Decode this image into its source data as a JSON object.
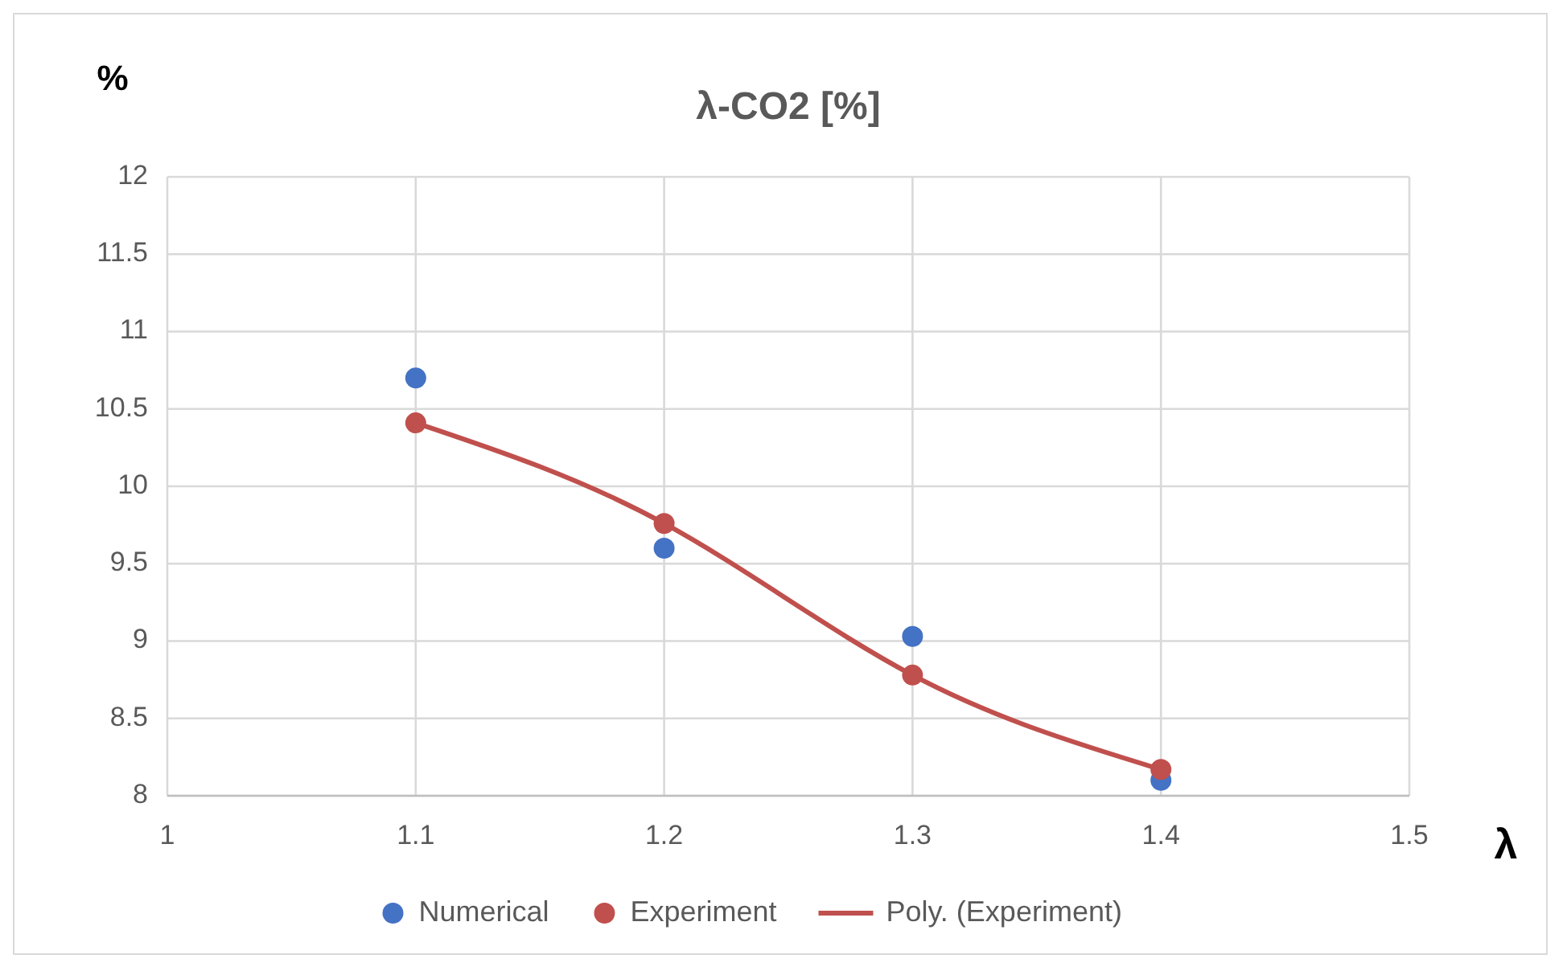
{
  "chart_data": {
    "type": "scatter",
    "title": "λ-CO2 [%]",
    "xlabel": "λ",
    "ylabel": "%",
    "xlim": [
      1,
      1.5
    ],
    "xticks": [
      1,
      1.1,
      1.2,
      1.3,
      1.4,
      1.5
    ],
    "ylim": [
      8,
      12
    ],
    "yticks": [
      8,
      8.5,
      9,
      9.5,
      10,
      10.5,
      11,
      11.5,
      12
    ],
    "grid": true,
    "legend": "bottom",
    "marker": "circle",
    "line_style": "solid",
    "x": [
      1.1,
      1.2,
      1.3,
      1.4
    ],
    "series": [
      {
        "name": "Numerical",
        "color": "#4472c4",
        "values": [
          10.7,
          9.6,
          9.03,
          8.1
        ]
      },
      {
        "name": "Experiment",
        "color": "#c0504d",
        "values": [
          10.41,
          9.76,
          8.78,
          8.17
        ]
      },
      {
        "name": "Poly. (Experiment)",
        "type": "line",
        "marker": "none",
        "color": "#c0504d",
        "values": [
          10.41,
          9.76,
          8.78,
          8.17
        ]
      }
    ]
  }
}
